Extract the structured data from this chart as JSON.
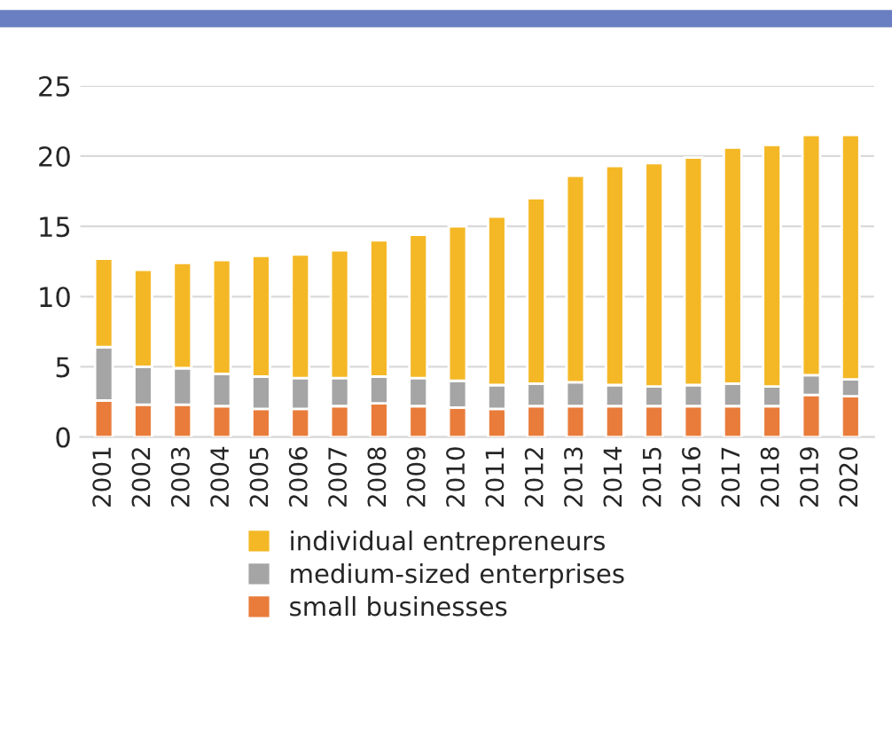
{
  "chart_data": {
    "type": "bar",
    "stacked": true,
    "categories": [
      "2001",
      "2002",
      "2003",
      "2004",
      "2005",
      "2006",
      "2007",
      "2008",
      "2009",
      "2010",
      "2011",
      "2012",
      "2013",
      "2014",
      "2015",
      "2016",
      "2017",
      "2018",
      "2019",
      "2020"
    ],
    "series": [
      {
        "name": "small businesses",
        "color": "#e97c3b",
        "values": [
          2.6,
          2.3,
          2.3,
          2.2,
          2.0,
          2.0,
          2.2,
          2.4,
          2.2,
          2.1,
          2.0,
          2.2,
          2.2,
          2.2,
          2.2,
          2.2,
          2.2,
          2.2,
          3.0,
          2.9
        ]
      },
      {
        "name": "medium-sized enterprises",
        "color": "#a5a5a5",
        "values": [
          3.8,
          2.7,
          2.6,
          2.3,
          2.3,
          2.2,
          2.0,
          1.9,
          2.0,
          1.9,
          1.7,
          1.6,
          1.7,
          1.5,
          1.4,
          1.5,
          1.6,
          1.4,
          1.4,
          1.2
        ]
      },
      {
        "name": "individual entrepreneurs",
        "color": "#f4b826",
        "values": [
          6.3,
          6.9,
          7.5,
          8.1,
          8.6,
          8.8,
          9.1,
          9.7,
          10.2,
          11.0,
          12.0,
          13.2,
          14.7,
          15.6,
          15.9,
          16.2,
          16.8,
          17.2,
          17.1,
          17.4
        ]
      }
    ],
    "ylim": [
      0,
      25
    ],
    "yticks": [
      0,
      5,
      10,
      15,
      20,
      25
    ],
    "grid": "y",
    "legend": "bottom"
  }
}
